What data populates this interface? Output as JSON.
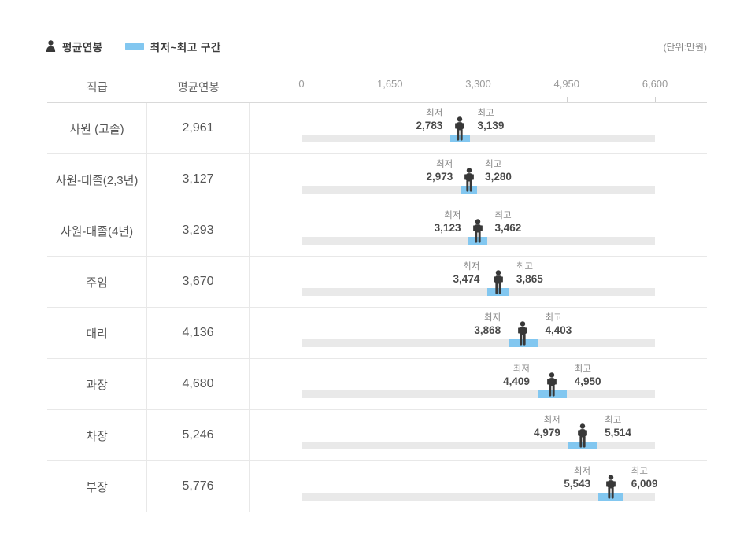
{
  "legend": {
    "avg_label": "평균연봉",
    "range_label": "최저~최고 구간",
    "unit_label": "(단위:만원)"
  },
  "table": {
    "headers": {
      "position": "직급",
      "avg_salary": "평균연봉"
    },
    "axis": {
      "tick_labels": [
        "0",
        "1,650",
        "3,300",
        "4,950",
        "6,600"
      ],
      "tick_values": [
        0,
        1650,
        3300,
        4950,
        6600
      ],
      "max": 6600
    },
    "min_label": "최저",
    "max_label": "최고",
    "rows": [
      {
        "position": "사원 (고졸)",
        "avg_text": "2,961",
        "avg": 2961,
        "min_text": "2,783",
        "min": 2783,
        "max_text": "3,139",
        "max": 3139
      },
      {
        "position": "사원-대졸(2,3년)",
        "avg_text": "3,127",
        "avg": 3127,
        "min_text": "2,973",
        "min": 2973,
        "max_text": "3,280",
        "max": 3280
      },
      {
        "position": "사원-대졸(4년)",
        "avg_text": "3,293",
        "avg": 3293,
        "min_text": "3,123",
        "min": 3123,
        "max_text": "3,462",
        "max": 3462
      },
      {
        "position": "주임",
        "avg_text": "3,670",
        "avg": 3670,
        "min_text": "3,474",
        "min": 3474,
        "max_text": "3,865",
        "max": 3865
      },
      {
        "position": "대리",
        "avg_text": "4,136",
        "avg": 4136,
        "min_text": "3,868",
        "min": 3868,
        "max_text": "4,403",
        "max": 4403
      },
      {
        "position": "과장",
        "avg_text": "4,680",
        "avg": 4680,
        "min_text": "4,409",
        "min": 4409,
        "max_text": "4,950",
        "max": 4950
      },
      {
        "position": "차장",
        "avg_text": "5,246",
        "avg": 5246,
        "min_text": "4,979",
        "min": 4979,
        "max_text": "5,514",
        "max": 5514
      },
      {
        "position": "부장",
        "avg_text": "5,776",
        "avg": 5776,
        "min_text": "5,543",
        "min": 5543,
        "max_text": "6,009",
        "max": 6009
      }
    ]
  },
  "colors": {
    "range_bar": "#82c7f0",
    "track": "#e9e9e9",
    "person_icon": "#383838",
    "value_text": "#4a4a4a",
    "muted_text": "#8b8b8b"
  },
  "chart_data": {
    "type": "bar",
    "subtype": "horizontal-range-with-average-marker",
    "orientation": "horizontal",
    "categories": [
      "사원 (고졸)",
      "사원-대졸(2,3년)",
      "사원-대졸(4년)",
      "주임",
      "대리",
      "과장",
      "차장",
      "부장"
    ],
    "series": [
      {
        "name": "평균연봉",
        "values": [
          2961,
          3127,
          3293,
          3670,
          4136,
          4680,
          5246,
          5776
        ]
      },
      {
        "name": "최저",
        "values": [
          2783,
          2973,
          3123,
          3474,
          3868,
          4409,
          4979,
          5543
        ]
      },
      {
        "name": "최고",
        "values": [
          3139,
          3280,
          3462,
          3865,
          4403,
          4950,
          5514,
          6009
        ]
      }
    ],
    "legend": [
      "평균연봉",
      "최저~최고 구간"
    ],
    "legend_position": "top-left",
    "unit": "만원",
    "xlim": [
      0,
      6600
    ],
    "x_ticks": [
      0,
      1650,
      3300,
      4950,
      6600
    ],
    "grid": false
  }
}
